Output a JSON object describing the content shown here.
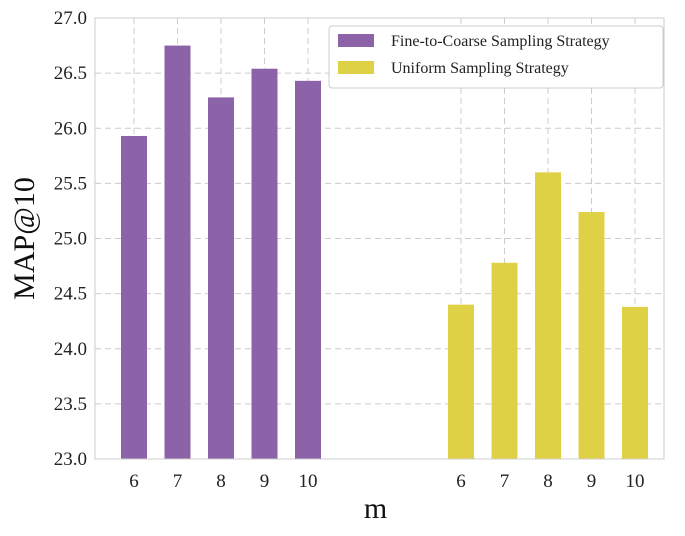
{
  "chart_data": {
    "type": "bar",
    "title": "",
    "xlabel": "m",
    "ylabel": "MAP@10",
    "ylim": [
      23.0,
      27.0
    ],
    "yticks": [
      "23.0",
      "23.5",
      "24.0",
      "24.5",
      "25.0",
      "25.5",
      "26.0",
      "26.5",
      "27.0"
    ],
    "grid": true,
    "legend_position": "top-right",
    "series": [
      {
        "name": "Fine-to-Coarse Sampling Strategy",
        "color": "#8c62a8",
        "categories": [
          "6",
          "7",
          "8",
          "9",
          "10"
        ],
        "values": [
          25.93,
          26.75,
          26.28,
          26.54,
          26.43
        ]
      },
      {
        "name": "Uniform Sampling Strategy",
        "color": "#dfd146",
        "categories": [
          "6",
          "7",
          "8",
          "9",
          "10"
        ],
        "values": [
          24.4,
          24.78,
          25.6,
          25.24,
          24.38
        ]
      }
    ]
  }
}
